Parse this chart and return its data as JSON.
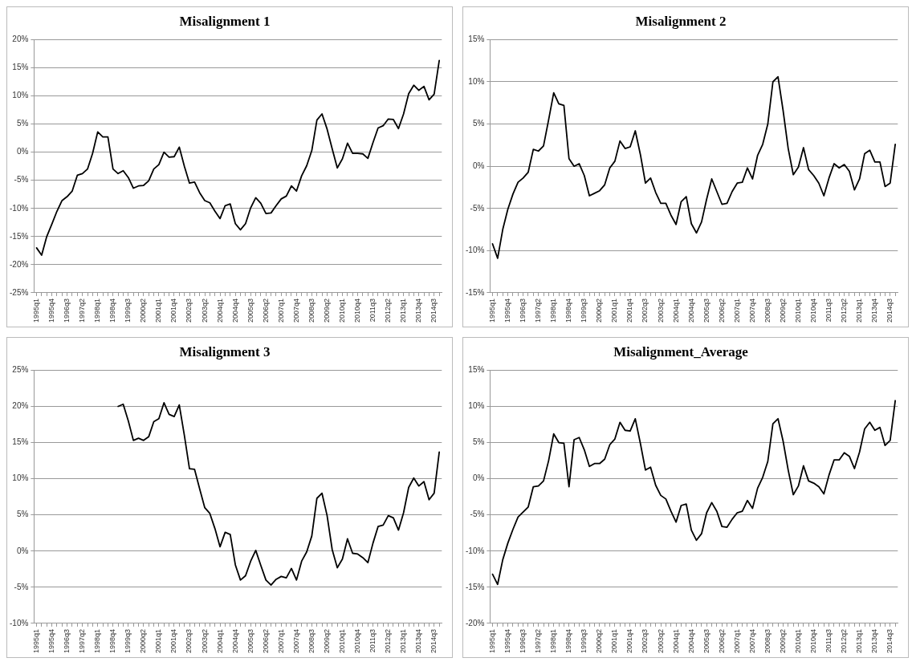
{
  "chart_data": [
    {
      "type": "line",
      "title": "Misalignment 1",
      "color": "#000000",
      "grid": "y",
      "categories": [
        "1995q1",
        null,
        null,
        "1995q4",
        null,
        null,
        "1996q3",
        null,
        null,
        "1997q2",
        null,
        null,
        "1998q1",
        null,
        null,
        "1998q4",
        null,
        null,
        "1999q3",
        null,
        null,
        "2000q2",
        null,
        null,
        "2001q1",
        null,
        null,
        "2001q4",
        null,
        null,
        "2002q3",
        null,
        null,
        "2003q2",
        null,
        null,
        "2004q1",
        null,
        null,
        "2004q4",
        null,
        null,
        "2005q3",
        null,
        null,
        "2006q2",
        null,
        null,
        "2007q1",
        null,
        null,
        "2007q4",
        null,
        null,
        "2008q3",
        null,
        null,
        "2009q2",
        null,
        null,
        "2010q1",
        null,
        null,
        "2010q4",
        null,
        null,
        "2011q3",
        null,
        null,
        "2012q2",
        null,
        null,
        "2013q1",
        null,
        null,
        "2013q4",
        null,
        null,
        "2014q3",
        null
      ],
      "values": [
        -17,
        -18.3,
        -15,
        -12.8,
        -10.5,
        -8.6,
        -7.9,
        -6.9,
        -4.1,
        -3.8,
        -3,
        -0.2,
        3.6,
        2.7,
        2.7,
        -3,
        -3.8,
        -3.3,
        -4.5,
        -6.4,
        -6,
        -5.9,
        -5.1,
        -3,
        -2.2,
        0,
        -0.9,
        -0.8,
        0.9,
        -2.5,
        -5.5,
        -5.3,
        -7.2,
        -8.6,
        -9,
        -10.5,
        -11.8,
        -9.5,
        -9.2,
        -12.7,
        -13.8,
        -12.7,
        -9.9,
        -8.1,
        -9.1,
        -10.9,
        -10.8,
        -9.5,
        -8.3,
        -7.8,
        -6,
        -6.9,
        -4.2,
        -2.4,
        0.3,
        5.7,
        6.8,
        4.1,
        0.6,
        -2.8,
        -1.2,
        1.6,
        -0.2,
        -0.2,
        -0.3,
        -1.1,
        1.7,
        4.3,
        4.7,
        5.9,
        5.8,
        4.2,
        6.8,
        10.4,
        11.9,
        11,
        11.7,
        9.3,
        10.3,
        16.3
      ],
      "ylim": [
        -25,
        20
      ],
      "yticks": [
        {
          "value": -25,
          "label": "-25%"
        },
        {
          "value": -20,
          "label": "-20%"
        },
        {
          "value": -15,
          "label": "-15%"
        },
        {
          "value": -10,
          "label": "-10%"
        },
        {
          "value": -5,
          "label": "-5%"
        },
        {
          "value": 0,
          "label": "0%"
        },
        {
          "value": 5,
          "label": "5%"
        },
        {
          "value": 10,
          "label": "10%"
        },
        {
          "value": 15,
          "label": "15%"
        },
        {
          "value": 20,
          "label": "20%"
        }
      ]
    },
    {
      "type": "line",
      "title": "Misalignment 2",
      "color": "#000000",
      "grid": "y",
      "categories": [
        "1995q1",
        null,
        null,
        "1995q4",
        null,
        null,
        "1996q3",
        null,
        null,
        "1997q2",
        null,
        null,
        "1998q1",
        null,
        null,
        "1998q4",
        null,
        null,
        "1999q3",
        null,
        null,
        "2000q2",
        null,
        null,
        "2001q1",
        null,
        null,
        "2001q4",
        null,
        null,
        "2002q3",
        null,
        null,
        "2003q2",
        null,
        null,
        "2004q1",
        null,
        null,
        "2004q4",
        null,
        null,
        "2005q3",
        null,
        null,
        "2006q2",
        null,
        null,
        "2007q1",
        null,
        null,
        "2007q4",
        null,
        null,
        "2008q3",
        null,
        null,
        "2009q2",
        null,
        null,
        "2010q1",
        null,
        null,
        "2010q4",
        null,
        null,
        "2011q3",
        null,
        null,
        "2012q2",
        null,
        null,
        "2013q1",
        null,
        null,
        "2013q4",
        null,
        null,
        "2014q3",
        null
      ],
      "values": [
        -9.2,
        -10.9,
        -7.5,
        -5.1,
        -3.3,
        -1.9,
        -1.4,
        -0.7,
        2,
        1.8,
        2.4,
        5.5,
        8.7,
        7.4,
        7.2,
        0.9,
        0,
        0.3,
        -1.1,
        -3.5,
        -3.2,
        -2.9,
        -2.2,
        -0.2,
        0.6,
        3,
        2.1,
        2.3,
        4.2,
        1.4,
        -2,
        -1.4,
        -3.1,
        -4.4,
        -4.4,
        -5.8,
        -6.9,
        -4.2,
        -3.6,
        -6.8,
        -7.9,
        -6.6,
        -3.9,
        -1.5,
        -3,
        -4.5,
        -4.4,
        -3,
        -2,
        -1.9,
        -0.2,
        -1.5,
        1.3,
        2.6,
        5,
        10,
        10.6,
        6.6,
        2.1,
        -1,
        -0.1,
        2.2,
        -0.4,
        -1.1,
        -2,
        -3.5,
        -1.4,
        0.3,
        -0.2,
        0.2,
        -0.6,
        -2.8,
        -1.5,
        1.5,
        1.9,
        0.5,
        0.5,
        -2.4,
        -2,
        2.6
      ],
      "ylim": [
        -15,
        15
      ],
      "yticks": [
        {
          "value": -15,
          "label": "-15%"
        },
        {
          "value": -10,
          "label": "-10%"
        },
        {
          "value": -5,
          "label": "-5%"
        },
        {
          "value": 0,
          "label": "0%"
        },
        {
          "value": 5,
          "label": "5%"
        },
        {
          "value": 10,
          "label": "10%"
        },
        {
          "value": 15,
          "label": "15%"
        }
      ]
    },
    {
      "type": "line",
      "title": "Misalignment 3",
      "color": "#000000",
      "grid": "y",
      "categories": [
        "1995q1",
        null,
        null,
        "1995q4",
        null,
        null,
        "1996q3",
        null,
        null,
        "1997q2",
        null,
        null,
        "1998q1",
        null,
        null,
        "1998q4",
        null,
        null,
        "1999q3",
        null,
        null,
        "2000q2",
        null,
        null,
        "2001q1",
        null,
        null,
        "2001q4",
        null,
        null,
        "2002q3",
        null,
        null,
        "2003q2",
        null,
        null,
        "2004q1",
        null,
        null,
        "2004q4",
        null,
        null,
        "2005q3",
        null,
        null,
        "2006q2",
        null,
        null,
        "2007q1",
        null,
        null,
        "2007q4",
        null,
        null,
        "2008q3",
        null,
        null,
        "2009q2",
        null,
        null,
        "2010q1",
        null,
        null,
        "2010q4",
        null,
        null,
        "2011q3",
        null,
        null,
        "2012q2",
        null,
        null,
        "2013q1",
        null,
        null,
        "2013q4",
        null,
        null,
        "2014q3",
        null
      ],
      "values": [
        null,
        null,
        null,
        null,
        null,
        null,
        null,
        null,
        null,
        null,
        null,
        null,
        null,
        null,
        null,
        null,
        20,
        20.3,
        18,
        15.3,
        15.6,
        15.3,
        15.8,
        17.9,
        18.3,
        20.5,
        18.9,
        18.6,
        20.2,
        16,
        11.4,
        11.3,
        8.6,
        6,
        5.2,
        3.1,
        0.6,
        2.6,
        2.3,
        -1.9,
        -4,
        -3.4,
        -1.4,
        0.1,
        -2,
        -4,
        -4.7,
        -3.9,
        -3.5,
        -3.7,
        -2.4,
        -4,
        -1.4,
        -0.1,
        2.1,
        7.3,
        8,
        4.9,
        0.2,
        -2.3,
        -1.1,
        1.7,
        -0.3,
        -0.4,
        -0.9,
        -1.6,
        1.1,
        3.4,
        3.6,
        4.9,
        4.6,
        2.9,
        5.3,
        8.8,
        10.1,
        9,
        9.6,
        7.1,
        8,
        13.7
      ],
      "ylim": [
        -10,
        25
      ],
      "yticks": [
        {
          "value": -10,
          "label": "-10%"
        },
        {
          "value": -5,
          "label": "-5%"
        },
        {
          "value": 0,
          "label": "0%"
        },
        {
          "value": 5,
          "label": "5%"
        },
        {
          "value": 10,
          "label": "10%"
        },
        {
          "value": 15,
          "label": "15%"
        },
        {
          "value": 20,
          "label": "20%"
        },
        {
          "value": 25,
          "label": "25%"
        }
      ]
    },
    {
      "type": "line",
      "title": "Misalignment_Average",
      "color": "#000000",
      "grid": "y",
      "categories": [
        "1995q1",
        null,
        null,
        "1995q4",
        null,
        null,
        "1996q3",
        null,
        null,
        "1997q2",
        null,
        null,
        "1998q1",
        null,
        null,
        "1998q4",
        null,
        null,
        "1999q3",
        null,
        null,
        "2000q2",
        null,
        null,
        "2001q1",
        null,
        null,
        "2001q4",
        null,
        null,
        "2002q3",
        null,
        null,
        "2003q2",
        null,
        null,
        "2004q1",
        null,
        null,
        "2004q4",
        null,
        null,
        "2005q3",
        null,
        null,
        "2006q2",
        null,
        null,
        "2007q1",
        null,
        null,
        "2007q4",
        null,
        null,
        "2008q3",
        null,
        null,
        "2009q2",
        null,
        null,
        "2010q1",
        null,
        null,
        "2010q4",
        null,
        null,
        "2011q3",
        null,
        null,
        "2012q2",
        null,
        null,
        "2013q1",
        null,
        null,
        "2013q4",
        null,
        null,
        "2014q3",
        null
      ],
      "values": [
        -13.2,
        -14.6,
        -11.2,
        -8.9,
        -7,
        -5.3,
        -4.6,
        -3.9,
        -1.1,
        -1,
        -0.3,
        2.5,
        6.2,
        5,
        4.9,
        -1.1,
        5.4,
        5.7,
        4,
        1.7,
        2.1,
        2.1,
        2.7,
        4.7,
        5.5,
        7.8,
        6.7,
        6.6,
        8.3,
        4.9,
        1.2,
        1.6,
        -0.9,
        -2.3,
        -2.8,
        -4.5,
        -6,
        -3.7,
        -3.5,
        -7.1,
        -8.5,
        -7.6,
        -4.7,
        -3.3,
        -4.5,
        -6.6,
        -6.7,
        -5.6,
        -4.7,
        -4.5,
        -3,
        -4.1,
        -1.3,
        0.2,
        2.4,
        7.6,
        8.3,
        5.2,
        1.2,
        -2.2,
        -1,
        1.8,
        -0.3,
        -0.6,
        -1.1,
        -2.1,
        0.5,
        2.6,
        2.6,
        3.6,
        3.1,
        1.4,
        3.7,
        6.9,
        7.8,
        6.7,
        7.1,
        4.6,
        5.3,
        10.8
      ],
      "ylim": [
        -20,
        15
      ],
      "yticks": [
        {
          "value": -20,
          "label": "-20%"
        },
        {
          "value": -15,
          "label": "-15%"
        },
        {
          "value": -10,
          "label": "-10%"
        },
        {
          "value": -5,
          "label": "-5%"
        },
        {
          "value": 0,
          "label": "0%"
        },
        {
          "value": 5,
          "label": "5%"
        },
        {
          "value": 10,
          "label": "10%"
        },
        {
          "value": 15,
          "label": "15%"
        }
      ]
    }
  ]
}
